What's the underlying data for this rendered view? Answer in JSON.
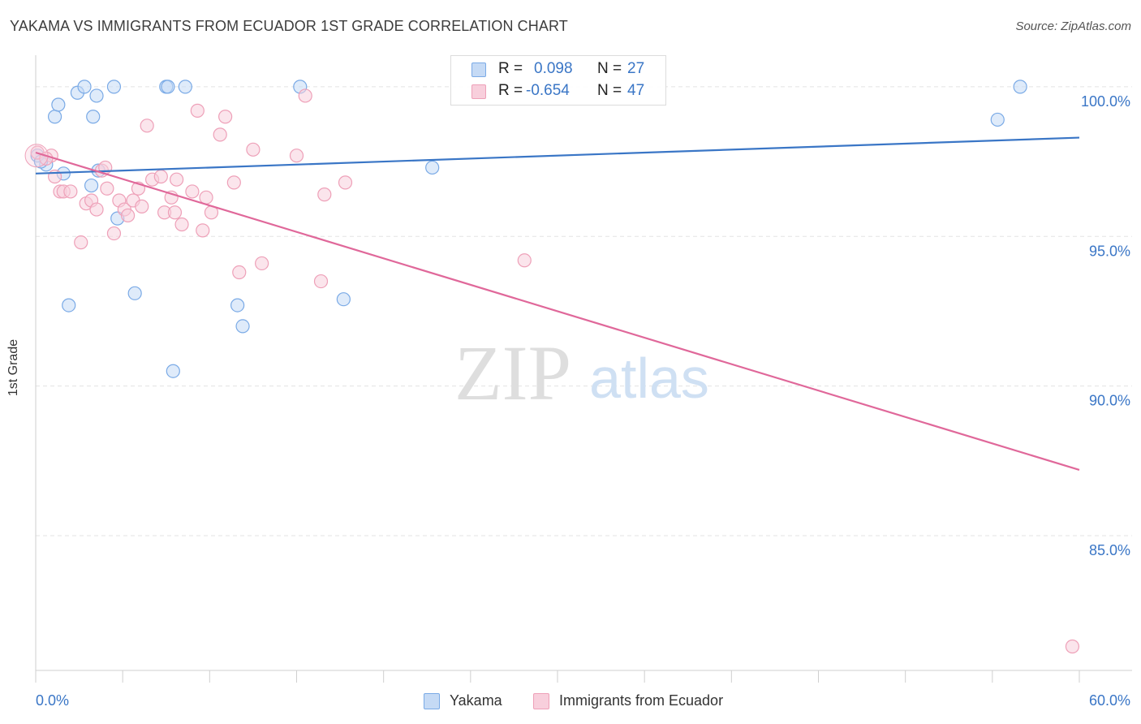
{
  "header": {
    "title": "YAKAMA VS IMMIGRANTS FROM ECUADOR 1ST GRADE CORRELATION CHART",
    "source": "Source: ZipAtlas.com"
  },
  "watermark": {
    "zip": "ZIP",
    "atlas": "atlas"
  },
  "stats": {
    "r_label": "R =",
    "n_label": "N =",
    "rows": [
      {
        "series": "Yakama",
        "r": "0.098",
        "n": "27"
      },
      {
        "series": "Immigrants from Ecuador",
        "r": "-0.654",
        "n": "47"
      }
    ]
  },
  "chart_data": {
    "type": "scatter",
    "title": "YAKAMA VS IMMIGRANTS FROM ECUADOR 1ST GRADE CORRELATION CHART",
    "xlabel": "",
    "ylabel": "1st Grade",
    "xlim": [
      0,
      60
    ],
    "ylim": [
      80.5,
      101
    ],
    "x_tick_labels": [
      "0.0%",
      "60.0%"
    ],
    "y_ticks": [
      85,
      90,
      95,
      100
    ],
    "y_tick_labels": [
      "85.0%",
      "90.0%",
      "95.0%",
      "100.0%"
    ],
    "grid": true,
    "legend_position": "bottom-center",
    "series": [
      {
        "name": "Yakama",
        "color": "#7aaae6",
        "fill": "#c5daf5",
        "line_color": "#3a76c6",
        "trend": {
          "x": [
            0,
            60
          ],
          "y": [
            97.1,
            98.3
          ]
        },
        "points": [
          [
            0.1,
            97.7
          ],
          [
            0.6,
            97.4
          ],
          [
            1.1,
            99.0
          ],
          [
            1.3,
            99.4
          ],
          [
            1.6,
            97.1
          ],
          [
            1.9,
            92.7
          ],
          [
            2.4,
            99.8
          ],
          [
            2.8,
            100.0
          ],
          [
            3.2,
            96.7
          ],
          [
            3.3,
            99.0
          ],
          [
            3.5,
            99.7
          ],
          [
            4.5,
            100.0
          ],
          [
            4.7,
            95.6
          ],
          [
            5.7,
            93.1
          ],
          [
            7.5,
            100.0
          ],
          [
            7.6,
            100.0
          ],
          [
            7.9,
            90.5
          ],
          [
            8.6,
            100.0
          ],
          [
            11.6,
            92.7
          ],
          [
            11.9,
            92.0
          ],
          [
            15.2,
            100.0
          ],
          [
            17.7,
            92.9
          ],
          [
            22.8,
            97.3
          ],
          [
            56.6,
            100.0
          ],
          [
            55.3,
            98.9
          ],
          [
            3.6,
            97.2
          ],
          [
            0.3,
            97.5
          ]
        ]
      },
      {
        "name": "Immigrants from Ecuador",
        "color": "#eea0b8",
        "fill": "#f8cfdc",
        "line_color": "#e0689a",
        "trend": {
          "x": [
            0,
            60
          ],
          "y": [
            97.8,
            87.2
          ]
        },
        "points": [
          [
            0.1,
            97.8
          ],
          [
            0.9,
            97.7
          ],
          [
            1.1,
            97.0
          ],
          [
            1.4,
            96.5
          ],
          [
            1.6,
            96.5
          ],
          [
            2.0,
            96.5
          ],
          [
            2.6,
            94.8
          ],
          [
            2.9,
            96.1
          ],
          [
            3.2,
            96.2
          ],
          [
            3.5,
            95.9
          ],
          [
            3.8,
            97.2
          ],
          [
            4.0,
            97.3
          ],
          [
            4.1,
            96.6
          ],
          [
            4.5,
            95.1
          ],
          [
            4.8,
            96.2
          ],
          [
            5.1,
            95.9
          ],
          [
            5.3,
            95.7
          ],
          [
            5.6,
            96.2
          ],
          [
            5.9,
            96.6
          ],
          [
            6.1,
            96.0
          ],
          [
            6.4,
            98.7
          ],
          [
            6.7,
            96.9
          ],
          [
            7.2,
            97.0
          ],
          [
            7.4,
            95.8
          ],
          [
            7.8,
            96.3
          ],
          [
            8.0,
            95.8
          ],
          [
            8.1,
            96.9
          ],
          [
            8.4,
            95.4
          ],
          [
            9.0,
            96.5
          ],
          [
            9.3,
            99.2
          ],
          [
            9.6,
            95.2
          ],
          [
            9.8,
            96.3
          ],
          [
            10.1,
            95.8
          ],
          [
            10.6,
            98.4
          ],
          [
            10.9,
            99.0
          ],
          [
            11.4,
            96.8
          ],
          [
            11.7,
            93.8
          ],
          [
            12.5,
            97.9
          ],
          [
            13.0,
            94.1
          ],
          [
            15.0,
            97.7
          ],
          [
            15.5,
            99.7
          ],
          [
            16.4,
            93.5
          ],
          [
            16.6,
            96.4
          ],
          [
            17.8,
            96.8
          ],
          [
            28.1,
            94.2
          ],
          [
            59.6,
            81.3
          ],
          [
            0.6,
            97.6
          ]
        ]
      }
    ]
  }
}
